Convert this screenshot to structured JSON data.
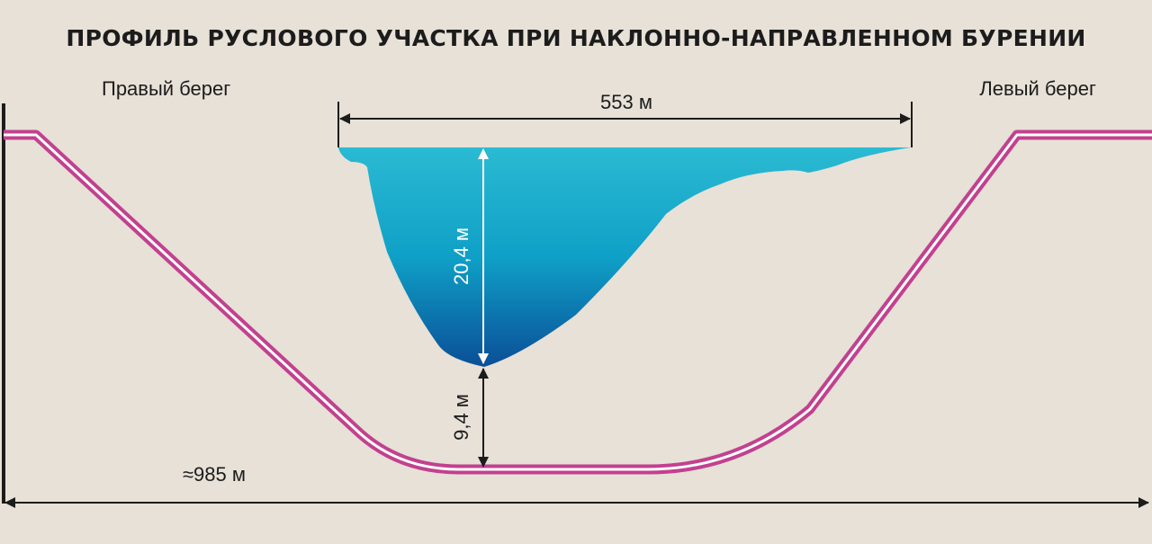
{
  "title": "ПРОФИЛЬ РУСЛОВОГО УЧАСТКА ПРИ НАКЛОННО-НАПРАВЛЕННОМ БУРЕНИИ",
  "banks": {
    "right": "Правый берег",
    "left": "Левый берег"
  },
  "dimensions": {
    "river_width": "553 м",
    "river_depth": "20,4 м",
    "pipe_below_bottom": "9,4 м",
    "total_length": "≈985 м"
  },
  "colors": {
    "background": "#e7e1d7",
    "pipe": "#c2418f",
    "water_top": "#2bbad2",
    "water_bottom": "#0a4f97",
    "line": "#1c1c1c"
  }
}
